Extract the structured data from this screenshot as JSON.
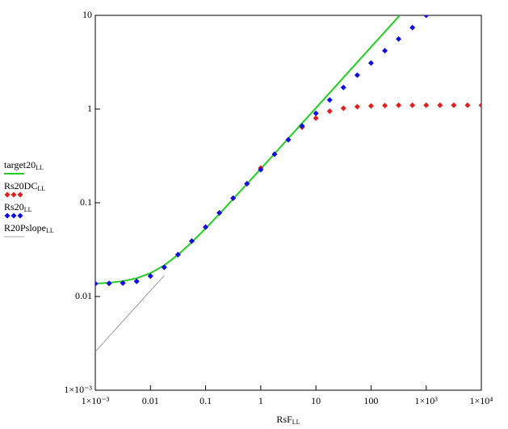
{
  "chart_data": {
    "type": "line",
    "x_label": "RsF",
    "x_label_subscript": "LL",
    "x": [
      0.001,
      0.00178,
      0.00316,
      0.00562,
      0.01,
      0.0178,
      0.0316,
      0.0562,
      0.1,
      0.178,
      0.316,
      0.562,
      1,
      1.78,
      3.16,
      5.62,
      10,
      17.8,
      31.6,
      56.2,
      100,
      178,
      316,
      562,
      1000,
      1780,
      3160,
      5620,
      10000
    ],
    "xlim": [
      0.001,
      10000
    ],
    "ylim": [
      0.001,
      10
    ],
    "log_x": true,
    "log_y": true,
    "xticks": [
      {
        "value": 0.001,
        "label": "1×10⁻³"
      },
      0.01,
      0.1,
      1,
      10,
      100,
      {
        "value": 1000,
        "label": "1×10³"
      },
      {
        "value": 10000,
        "label": "1×10⁴"
      }
    ],
    "yticks": [
      {
        "value": 0.001,
        "label": "1×10⁻³"
      },
      0.01,
      0.1,
      1,
      10
    ],
    "series": [
      {
        "name": "target20",
        "name_subscript": "LL",
        "mode": "line",
        "color": "#22cc22",
        "values": [
          0.01374,
          0.014,
          0.01456,
          0.01566,
          0.01775,
          0.0215,
          0.0279,
          0.0379,
          0.0532,
          0.0761,
          0.1097,
          0.159,
          0.23,
          0.334,
          0.486,
          0.707,
          1.027,
          1.49,
          2.17,
          3.15,
          4.59,
          6.67,
          9.7,
          14.1,
          null,
          null,
          null,
          null,
          null
        ]
      },
      {
        "name": "Rs20DC",
        "name_subscript": "LL",
        "mode": "markers",
        "color": "#e02020",
        "values": [
          0.0137,
          0.0138,
          0.0139,
          0.0145,
          0.0165,
          0.0205,
          0.028,
          0.039,
          0.055,
          0.078,
          0.112,
          0.16,
          0.235,
          0.33,
          0.47,
          0.64,
          0.8,
          0.95,
          1.02,
          1.06,
          1.08,
          1.09,
          1.1,
          1.1,
          1.1,
          1.1,
          1.1,
          1.1,
          1.1
        ]
      },
      {
        "name": "Rs20",
        "name_subscript": "LL",
        "mode": "markers",
        "color": "#1010dd",
        "values": [
          0.0137,
          0.0138,
          0.0139,
          0.0145,
          0.0165,
          0.0205,
          0.028,
          0.039,
          0.055,
          0.078,
          0.112,
          0.16,
          0.225,
          0.33,
          0.47,
          0.66,
          0.9,
          1.25,
          1.7,
          2.3,
          3.1,
          4.2,
          5.6,
          7.4,
          10,
          null,
          null,
          null,
          null
        ]
      },
      {
        "name": "R20Pslope",
        "name_subscript": "LL",
        "mode": "line",
        "color": "#888888",
        "values": [
          0.00258,
          0.00375,
          0.00545,
          0.00793,
          0.01153,
          0.01676,
          null,
          null,
          null,
          null,
          null,
          null,
          null,
          null,
          null,
          null,
          null,
          null,
          null,
          null,
          null,
          null,
          null,
          null,
          null,
          null,
          null,
          null,
          null
        ]
      }
    ]
  }
}
